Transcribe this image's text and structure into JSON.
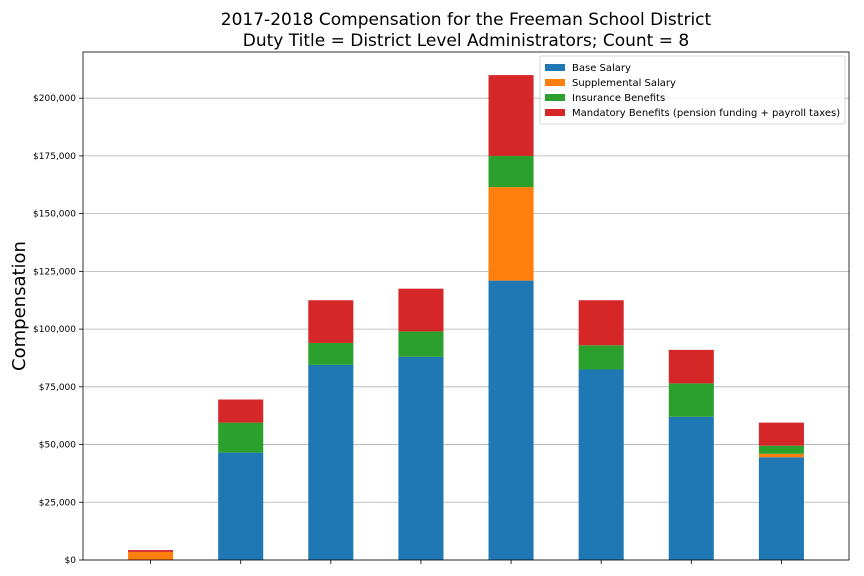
{
  "chart_data": {
    "type": "bar",
    "stacked": true,
    "title": "2017-2018 Compensation for the Freeman School District",
    "subtitle": "Duty Title = District Level Administrators; Count = 8",
    "xlabel": "",
    "ylabel": "Compensation",
    "ylim": [
      0,
      220000
    ],
    "yticks": [
      0,
      25000,
      50000,
      75000,
      100000,
      125000,
      150000,
      175000,
      200000
    ],
    "ytick_labels": [
      "$0",
      "$25,000",
      "$50,000",
      "$75,000",
      "$100,000",
      "$125,000",
      "$150,000",
      "$175,000",
      "$200,000"
    ],
    "grid": "horizontal",
    "legend_position": "top-right",
    "categories": [
      "",
      "",
      "",
      "",
      "",
      "",
      "",
      ""
    ],
    "series": [
      {
        "name": "Base Salary",
        "color": "#1f77b4",
        "values": [
          0,
          46500,
          84500,
          88000,
          121000,
          82500,
          62000,
          44500
        ]
      },
      {
        "name": "Supplemental Salary",
        "color": "#ff7f0e",
        "values": [
          3500,
          0,
          0,
          0,
          40500,
          0,
          0,
          1500
        ]
      },
      {
        "name": "Insurance Benefits",
        "color": "#2ca02c",
        "values": [
          0,
          13000,
          9500,
          11000,
          13500,
          10500,
          14500,
          3500
        ]
      },
      {
        "name": "Mandatory Benefits (pension funding + payroll taxes)",
        "color": "#d62728",
        "values": [
          800,
          10000,
          18500,
          18500,
          35000,
          19500,
          14500,
          10000
        ]
      }
    ]
  }
}
